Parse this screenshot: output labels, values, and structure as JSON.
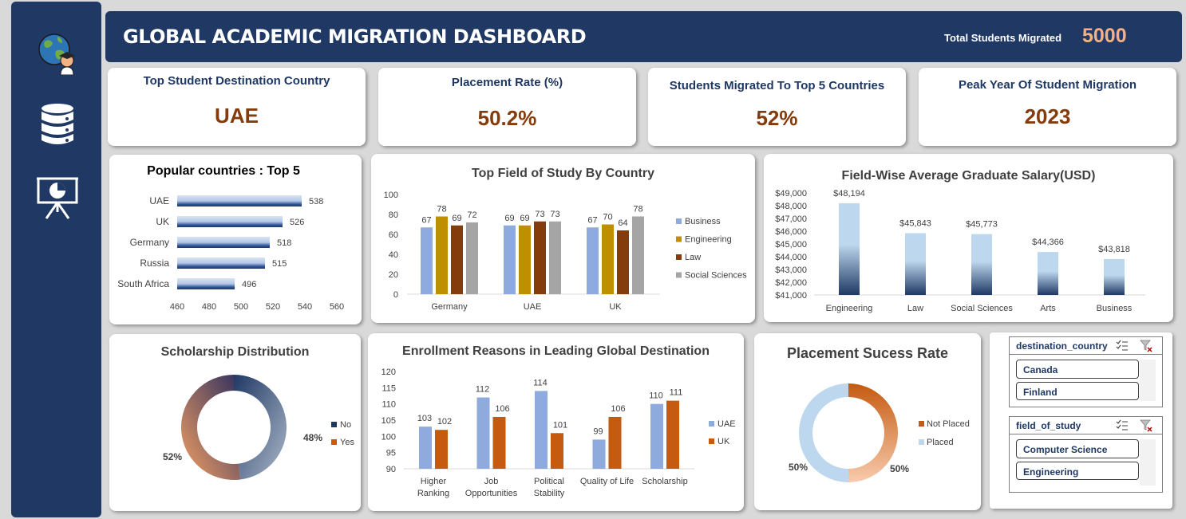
{
  "header": {
    "title": "GLOBAL ACADEMIC MIGRATION DASHBOARD",
    "total_label": "Total Students Migrated",
    "total_value": "5000"
  },
  "sidebar": {
    "icons": [
      "globe-graduate-icon",
      "database-icon",
      "presentation-chart-icon"
    ]
  },
  "kpis": [
    {
      "title": "Top Student Destination Country",
      "value": "UAE"
    },
    {
      "title": "Placement Rate (%)",
      "value": "50.2%"
    },
    {
      "title": "Students Migrated To Top 5 Countries",
      "value": "52%"
    },
    {
      "title": "Peak Year Of Student Migration",
      "value": "2023"
    }
  ],
  "slicers": [
    {
      "label": "destination_country",
      "items": [
        "Canada",
        "Finland"
      ]
    },
    {
      "label": "field_of_study",
      "items": [
        "Computer Science",
        "Engineering"
      ]
    }
  ],
  "colors": {
    "navy": "#1f3864",
    "accent": "#843c0c",
    "orange": "#c55a11",
    "blue": "#8faadc",
    "gold": "#bf8f00",
    "brown": "#843c0c",
    "gray": "#a5a5a5"
  },
  "chart_data": [
    {
      "type": "bar",
      "orientation": "horizontal",
      "title": "Popular countries : Top 5",
      "categories": [
        "UAE",
        "UK",
        "Germany",
        "Russia",
        "South Africa"
      ],
      "values": [
        538,
        526,
        518,
        515,
        496
      ],
      "xlim": [
        460,
        560
      ],
      "xticks": [
        460,
        480,
        500,
        520,
        540,
        560
      ]
    },
    {
      "type": "bar",
      "title": "Top Field of Study By Country",
      "categories": [
        "Germany",
        "UAE",
        "UK"
      ],
      "series": [
        {
          "name": "Business",
          "values": [
            67,
            69,
            67
          ]
        },
        {
          "name": "Engineering",
          "values": [
            78,
            69,
            70
          ]
        },
        {
          "name": "Law",
          "values": [
            69,
            73,
            64
          ]
        },
        {
          "name": "Social Sciences",
          "values": [
            72,
            73,
            78
          ]
        }
      ],
      "ylim": [
        0,
        100
      ],
      "yticks": [
        0,
        20,
        40,
        60,
        80,
        100
      ],
      "legend": "right"
    },
    {
      "type": "bar",
      "title": "Field-Wise Average Graduate Salary(USD)",
      "categories": [
        "Engineering",
        "Law",
        "Social Sciences",
        "Arts",
        "Business"
      ],
      "values": [
        48194,
        45843,
        45773,
        44366,
        43818
      ],
      "labels": [
        "$48,194",
        "$45,843",
        "$45,773",
        "$44,366",
        "$43,818"
      ],
      "ylim": [
        41000,
        49000
      ],
      "yticks": [
        "$41,000",
        "$42,000",
        "$43,000",
        "$44,000",
        "$45,000",
        "$46,000",
        "$47,000",
        "$48,000",
        "$49,000"
      ]
    },
    {
      "type": "pie",
      "title": "Scholarship Distribution",
      "categories": [
        "No",
        "Yes"
      ],
      "values": [
        48,
        52
      ],
      "labels": [
        "48%",
        "52%"
      ],
      "legend": "right"
    },
    {
      "type": "bar",
      "title": "Enrollment Reasons in Leading Global Destination",
      "categories": [
        "Higher Ranking",
        "Job Opportunities",
        "Political Stability",
        "Quality of Life",
        "Scholarship"
      ],
      "series": [
        {
          "name": "UAE",
          "values": [
            103,
            112,
            114,
            99,
            110
          ]
        },
        {
          "name": "UK",
          "values": [
            102,
            106,
            101,
            106,
            111
          ]
        }
      ],
      "ylim": [
        90,
        120
      ],
      "yticks": [
        90,
        95,
        100,
        105,
        110,
        115,
        120
      ],
      "legend": "right"
    },
    {
      "type": "pie",
      "title": "Placement Sucess Rate",
      "categories": [
        "Not Placed",
        "Placed"
      ],
      "values": [
        50,
        50
      ],
      "labels": [
        "50%",
        "50%"
      ],
      "legend": "right"
    }
  ]
}
